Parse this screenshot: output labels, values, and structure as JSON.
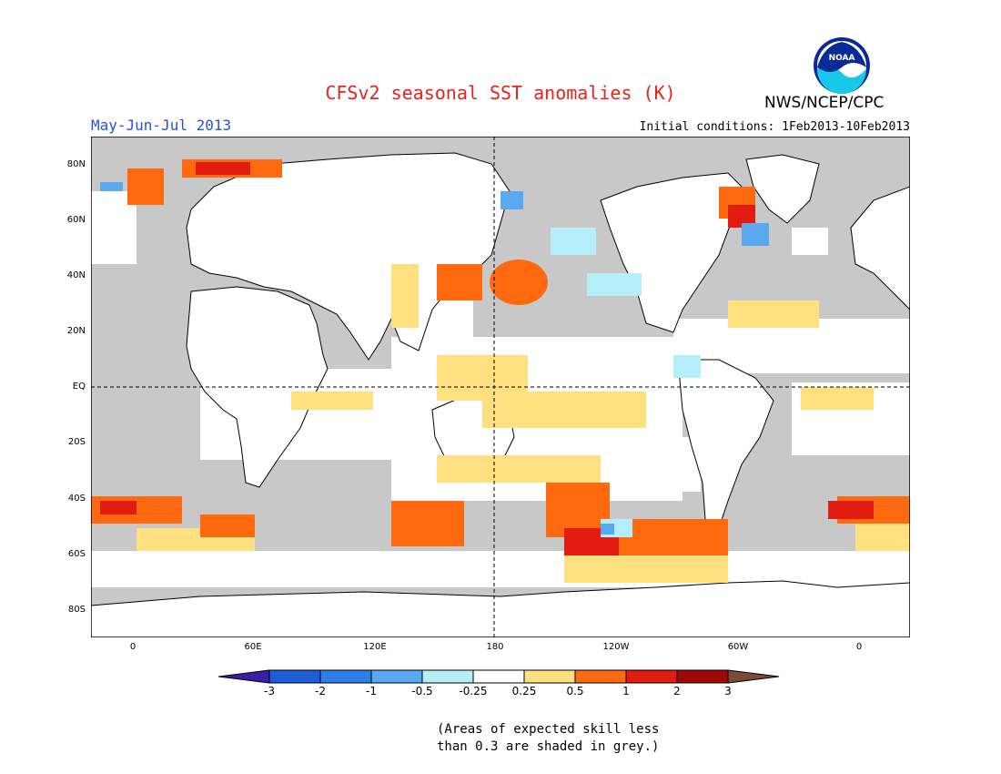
{
  "header": {
    "title": "CFSv2 seasonal SST anomalies (K)",
    "title_color": "#e8231a",
    "season": "May-Jun-Jul 2013",
    "season_color": "#2255dd",
    "initial_conditions": "Initial conditions: 1Feb2013-10Feb2013",
    "agency": "NWS/NCEP/CPC",
    "logo_text": "NOAA"
  },
  "map": {
    "lat_labels": [
      "80N",
      "60N",
      "40N",
      "20N",
      "EQ",
      "20S",
      "40S",
      "60S",
      "80S"
    ],
    "lon_labels": [
      "0",
      "60E",
      "120E",
      "180",
      "120W",
      "60W",
      "0"
    ],
    "land_color": "#ffffff",
    "low_skill_color": "#c8c8c8"
  },
  "colorbar": {
    "labels": [
      "-3",
      "-2",
      "-1",
      "-0.5",
      "-0.25",
      "0.25",
      "0.5",
      "1",
      "2",
      "3"
    ],
    "colors": [
      "#3b1ea8",
      "#1e5cd8",
      "#2e7ee8",
      "#5aa8f0",
      "#b4eef8",
      "#ffffff",
      "#ffe080",
      "#ff6a10",
      "#e21c10",
      "#a00808",
      "#7a4a3a"
    ]
  },
  "footnote": {
    "line1": "(Areas of expected skill less",
    "line2": "than 0.3 are shaded in grey.)"
  }
}
